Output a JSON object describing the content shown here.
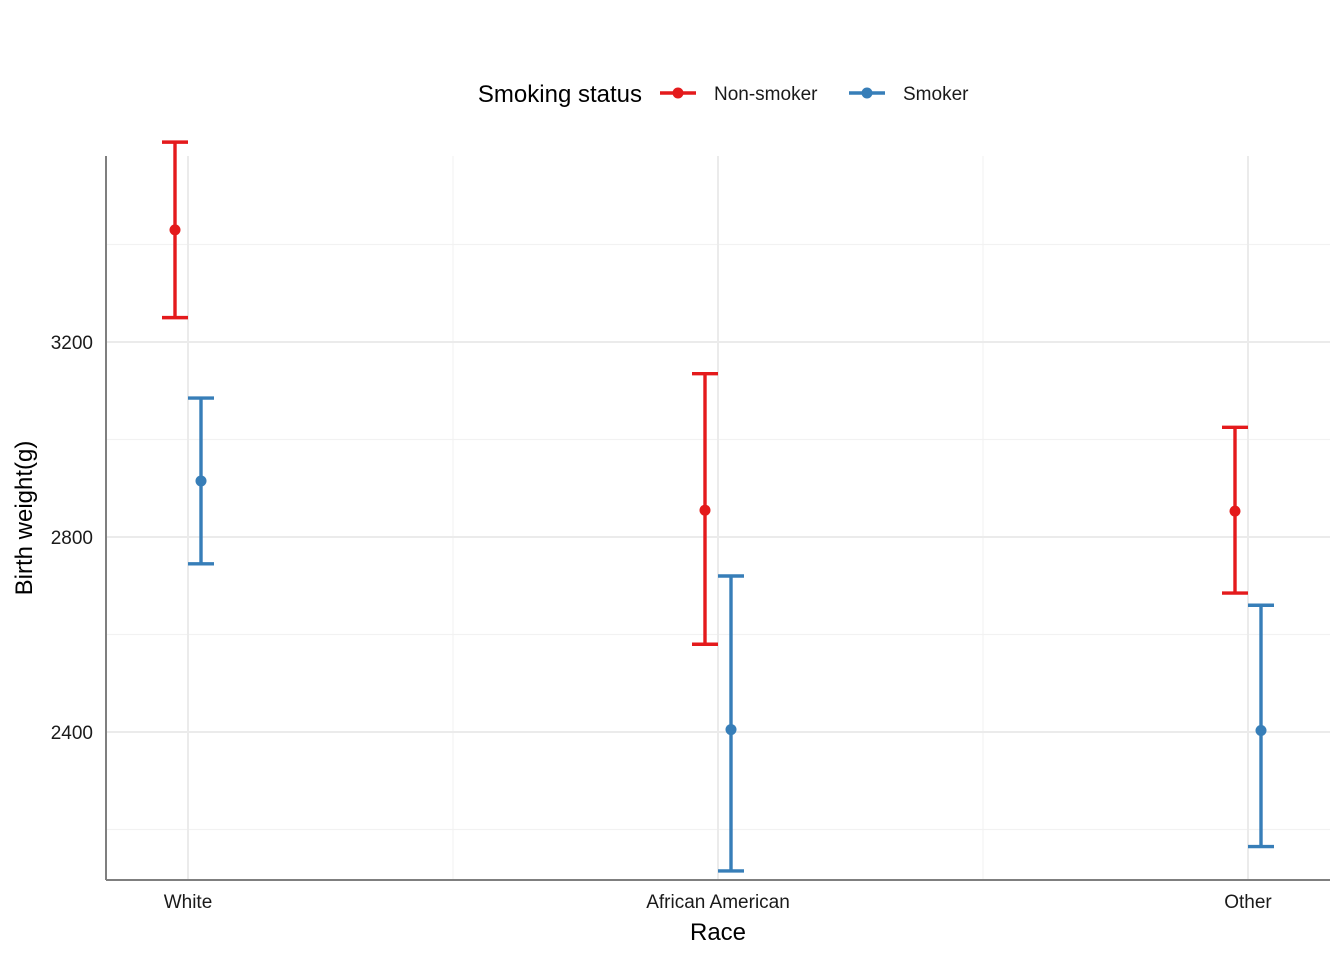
{
  "chart_data": {
    "type": "errorbar",
    "xlabel": "Race",
    "ylabel": "Birth weight(g)",
    "categories": [
      "White",
      "African American",
      "Other"
    ],
    "ylim": [
      2105,
      3590
    ],
    "y_ticks": [
      2400,
      2800,
      3200
    ],
    "y_tick_labels": [
      "2400",
      "2800",
      "3200"
    ],
    "grid": true,
    "legend": {
      "title": "Smoking status",
      "position": "top"
    },
    "series": [
      {
        "name": "Non-smoker",
        "color": "#e41a1c",
        "mean": [
          3430,
          2855,
          2853
        ],
        "lower": [
          3250,
          2580,
          2685
        ],
        "upper": [
          3610,
          3135,
          3025
        ]
      },
      {
        "name": "Smoker",
        "color": "#377eb8",
        "mean": [
          2915,
          2405,
          2403
        ],
        "lower": [
          2745,
          2115,
          2165
        ],
        "upper": [
          3085,
          2720,
          2660
        ]
      }
    ]
  }
}
